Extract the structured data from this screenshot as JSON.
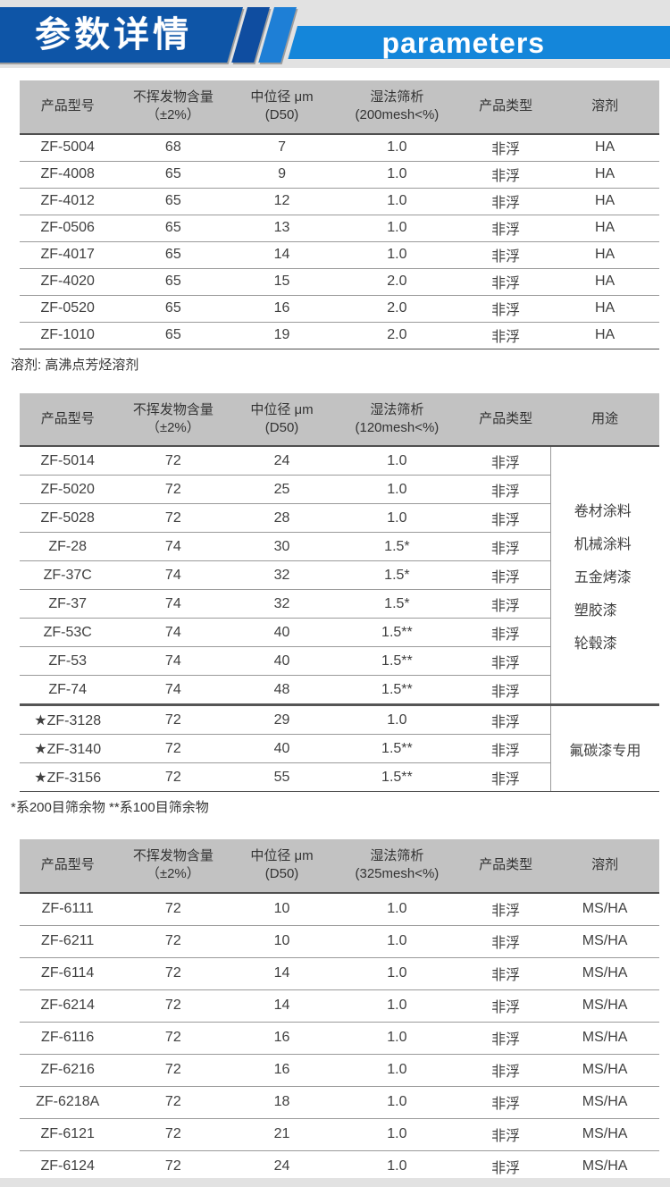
{
  "banner": {
    "title_cn": "参数详情",
    "title_en": "parameters",
    "colors": {
      "block": "#0e55a7",
      "stripe_dark": "#0f4da0",
      "stripe_light": "#1e7fd6",
      "band": "#1486da"
    }
  },
  "tables": [
    {
      "title": "200mesh products",
      "columns": [
        {
          "l1": "产品型号",
          "l2": ""
        },
        {
          "l1": "不挥发物含量",
          "l2": "（±2%）"
        },
        {
          "l1": "中位径 μm",
          "l2": "(D50)"
        },
        {
          "l1": "湿法筛析",
          "l2": "(200mesh<%)"
        },
        {
          "l1": "产品类型",
          "l2": ""
        },
        {
          "l1": "溶剂",
          "l2": ""
        }
      ],
      "rows": [
        [
          "ZF-5004",
          "68",
          "7",
          "1.0",
          "非浮",
          "HA"
        ],
        [
          "ZF-4008",
          "65",
          "9",
          "1.0",
          "非浮",
          "HA"
        ],
        [
          "ZF-4012",
          "65",
          "12",
          "1.0",
          "非浮",
          "HA"
        ],
        [
          "ZF-0506",
          "65",
          "13",
          "1.0",
          "非浮",
          "HA"
        ],
        [
          "ZF-4017",
          "65",
          "14",
          "1.0",
          "非浮",
          "HA"
        ],
        [
          "ZF-4020",
          "65",
          "15",
          "2.0",
          "非浮",
          "HA"
        ],
        [
          "ZF-0520",
          "65",
          "16",
          "2.0",
          "非浮",
          "HA"
        ],
        [
          "ZF-1010",
          "65",
          "19",
          "2.0",
          "非浮",
          "HA"
        ]
      ],
      "footnote": "溶剂: 高沸点芳烃溶剂"
    },
    {
      "title": "120mesh products",
      "columns": [
        {
          "l1": "产品型号",
          "l2": ""
        },
        {
          "l1": "不挥发物含量",
          "l2": "（±2%）"
        },
        {
          "l1": "中位径 μm",
          "l2": "(D50)"
        },
        {
          "l1": "湿法筛析",
          "l2": "(120mesh<%)"
        },
        {
          "l1": "产品类型",
          "l2": ""
        },
        {
          "l1": "用途",
          "l2": ""
        }
      ],
      "groups": [
        {
          "rows": [
            [
              "ZF-5014",
              "72",
              "24",
              "1.0",
              "非浮"
            ],
            [
              "ZF-5020",
              "72",
              "25",
              "1.0",
              "非浮"
            ],
            [
              "ZF-5028",
              "72",
              "28",
              "1.0",
              "非浮"
            ],
            [
              "ZF-28",
              "74",
              "30",
              "1.5*",
              "非浮"
            ],
            [
              "ZF-37C",
              "74",
              "32",
              "1.5*",
              "非浮"
            ],
            [
              "ZF-37",
              "74",
              "32",
              "1.5*",
              "非浮"
            ],
            [
              "ZF-53C",
              "74",
              "40",
              "1.5**",
              "非浮"
            ],
            [
              "ZF-53",
              "74",
              "40",
              "1.5**",
              "非浮"
            ],
            [
              "ZF-74",
              "74",
              "48",
              "1.5**",
              "非浮"
            ]
          ],
          "usage": [
            "卷材涂料",
            "机械涂料",
            "五金烤漆",
            "塑胶漆",
            "轮毂漆"
          ]
        },
        {
          "rows": [
            [
              "★ZF-3128",
              "72",
              "29",
              "1.0",
              "非浮"
            ],
            [
              "★ZF-3140",
              "72",
              "40",
              "1.5**",
              "非浮"
            ],
            [
              "★ZF-3156",
              "72",
              "55",
              "1.5**",
              "非浮"
            ]
          ],
          "usage": [
            "氟碳漆专用"
          ]
        }
      ],
      "footnote": "*系200目筛余物  **系100目筛余物"
    },
    {
      "title": "325mesh products",
      "columns": [
        {
          "l1": "产品型号",
          "l2": ""
        },
        {
          "l1": "不挥发物含量",
          "l2": "（±2%）"
        },
        {
          "l1": "中位径 μm",
          "l2": "(D50)"
        },
        {
          "l1": "湿法筛析",
          "l2": "(325mesh<%)"
        },
        {
          "l1": "产品类型",
          "l2": ""
        },
        {
          "l1": "溶剂",
          "l2": ""
        }
      ],
      "rows": [
        [
          "ZF-6111",
          "72",
          "10",
          "1.0",
          "非浮",
          "MS/HA"
        ],
        [
          "ZF-6211",
          "72",
          "10",
          "1.0",
          "非浮",
          "MS/HA"
        ],
        [
          "ZF-6114",
          "72",
          "14",
          "1.0",
          "非浮",
          "MS/HA"
        ],
        [
          "ZF-6214",
          "72",
          "14",
          "1.0",
          "非浮",
          "MS/HA"
        ],
        [
          "ZF-6116",
          "72",
          "16",
          "1.0",
          "非浮",
          "MS/HA"
        ],
        [
          "ZF-6216",
          "72",
          "16",
          "1.0",
          "非浮",
          "MS/HA"
        ],
        [
          "ZF-6218A",
          "72",
          "18",
          "1.0",
          "非浮",
          "MS/HA"
        ],
        [
          "ZF-6121",
          "72",
          "21",
          "1.0",
          "非浮",
          "MS/HA"
        ],
        [
          "ZF-6124",
          "72",
          "24",
          "1.0",
          "非浮",
          "MS/HA"
        ]
      ],
      "footnote": ""
    }
  ]
}
